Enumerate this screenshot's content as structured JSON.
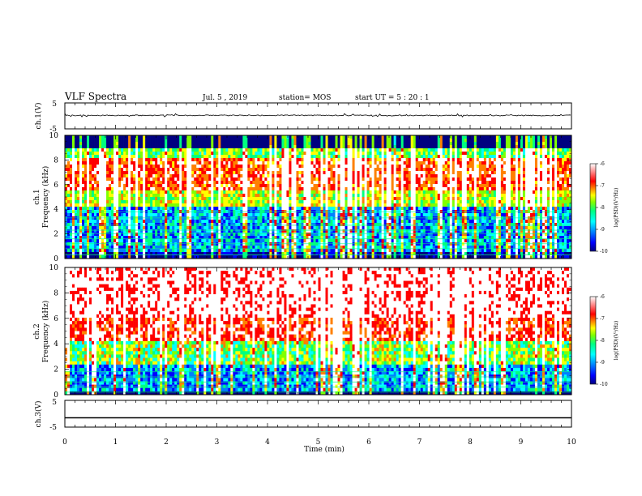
{
  "chart_data": {
    "type": "heatmap",
    "title": "VLF Spectra",
    "date": "Jul. 5 , 2019",
    "station": "station= MOS",
    "start_ut": "start UT =  5 : 20 : 1",
    "xlabel": "Time  (min)",
    "xlim": [
      0,
      10
    ],
    "xticks": [
      "0",
      "1",
      "2",
      "3",
      "4",
      "5",
      "6",
      "7",
      "8",
      "9",
      "10"
    ],
    "panels": [
      {
        "id": "ch1-waveform",
        "type": "line",
        "ylabel": "ch.1(V)",
        "ylim": [
          -5,
          5
        ],
        "yticks": [
          "5",
          "-5"
        ],
        "baseline_value": 0.2
      },
      {
        "id": "ch1-spectrogram",
        "type": "heatmap",
        "ylabel_channel": "ch.1",
        "ylabel": "Frequency  (kHz)",
        "ylim": [
          0,
          10
        ],
        "yticks": [
          "0",
          "2",
          "4",
          "6",
          "8",
          "10"
        ],
        "colorbar": {
          "label": "log(PSD)(V²/Hz)",
          "range": [
            -10,
            -6
          ],
          "ticks": [
            "-6",
            "-7",
            "-8",
            "-9",
            "-10"
          ]
        }
      },
      {
        "id": "ch2-spectrogram",
        "type": "heatmap",
        "ylabel_channel": "ch.2",
        "ylabel": "Frequency  (kHz)",
        "ylim": [
          0,
          10
        ],
        "yticks": [
          "0",
          "2",
          "4",
          "6",
          "8",
          "10"
        ],
        "colorbar": {
          "label": "log(PSD)(V²/Hz)",
          "range": [
            -10,
            -6
          ],
          "ticks": [
            "-6",
            "-7",
            "-8",
            "-9",
            "-10"
          ]
        }
      },
      {
        "id": "ch3-waveform",
        "type": "line",
        "ylabel": "ch.3(V)",
        "ylim": [
          -5,
          5
        ],
        "yticks": [
          "5",
          "-5"
        ],
        "baseline_value": -1.5
      }
    ],
    "colormap": [
      "#000080",
      "#0000ff",
      "#0080ff",
      "#00ffff",
      "#00ff80",
      "#80ff00",
      "#ffff00",
      "#ff8000",
      "#ff0000",
      "#ffffff"
    ]
  }
}
